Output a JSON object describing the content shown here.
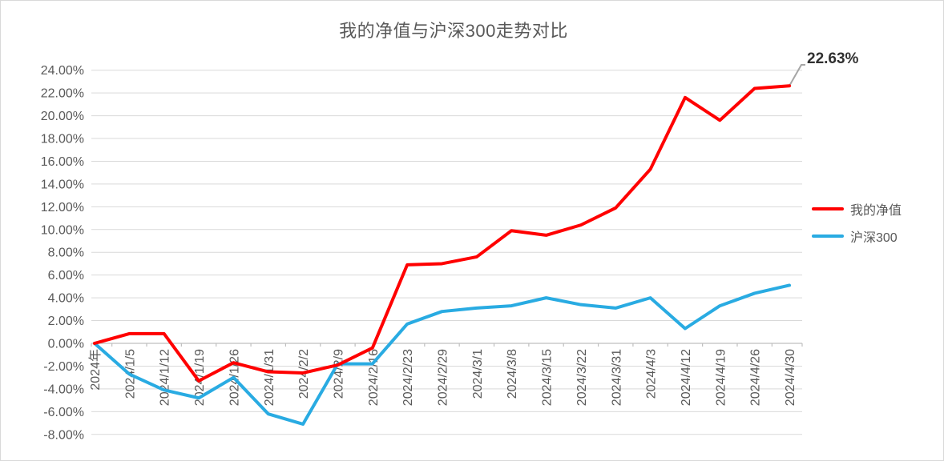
{
  "chart_data": {
    "type": "line",
    "title": "我的净值与沪深300走势对比",
    "categories": [
      "2024年",
      "2024/1/5",
      "2024/1/12",
      "2024/1/19",
      "2024/1/26",
      "2024/1/31",
      "2024/2/2",
      "2024/2/9",
      "2024/2/16",
      "2024/2/23",
      "2024/2/29",
      "2024/3/1",
      "2024/3/8",
      "2024/3/15",
      "2024/3/22",
      "2024/3/31",
      "2024/4/3",
      "2024/4/12",
      "2024/4/19",
      "2024/4/26",
      "2024/4/30"
    ],
    "series": [
      {
        "name": "我的净值",
        "color": "#ff0000",
        "values": [
          0.0,
          0.85,
          0.85,
          -3.3,
          -1.7,
          -2.5,
          -2.6,
          -1.9,
          -0.4,
          6.9,
          7.0,
          7.6,
          9.9,
          9.5,
          10.4,
          11.9,
          15.3,
          21.6,
          19.6,
          22.4,
          22.63
        ]
      },
      {
        "name": "沪深300",
        "color": "#29abe2",
        "values": [
          0.0,
          -2.7,
          -4.1,
          -4.8,
          -3.0,
          -6.2,
          -7.1,
          -1.8,
          -1.8,
          1.7,
          2.8,
          3.1,
          3.3,
          4.0,
          3.4,
          3.1,
          4.0,
          1.3,
          3.3,
          4.4,
          5.1
        ]
      }
    ],
    "ylim": [
      -8,
      24
    ],
    "ytick_step": 2,
    "ytick_labels": [
      "24.00%",
      "22.00%",
      "20.00%",
      "18.00%",
      "16.00%",
      "14.00%",
      "12.00%",
      "10.00%",
      "8.00%",
      "6.00%",
      "4.00%",
      "2.00%",
      "0.00%",
      "-2.00%",
      "-4.00%",
      "-6.00%",
      "-8.00%"
    ],
    "grid": true,
    "legend_position": "right",
    "annotation": {
      "text": "22.63%",
      "series": "我的净值",
      "category": "2024/4/30"
    },
    "colors": {
      "gridline": "#d9d9d9",
      "axis_line": "#bfbfbf",
      "tick_text": "#595959",
      "title_text": "#595959",
      "annotation_text": "#303030",
      "callout_line": "#a6a6a6"
    }
  }
}
